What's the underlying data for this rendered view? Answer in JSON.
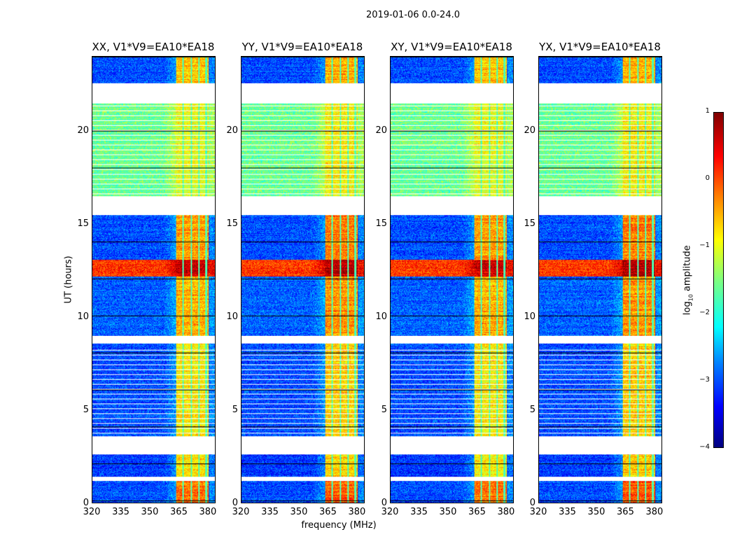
{
  "suptitle": "2019-01-06 0.0-24.0",
  "chart_data": {
    "type": "heatmap",
    "xlabel": "frequency (MHz)",
    "ylabel": "UT (hours)",
    "xlim": [
      320,
      384
    ],
    "ylim": [
      0,
      24
    ],
    "xticks": [
      "320",
      "335",
      "350",
      "365",
      "380"
    ],
    "xtick_values": [
      320,
      335,
      350,
      365,
      380
    ],
    "yticks": [
      "0",
      "5",
      "10",
      "15",
      "20"
    ],
    "ytick_values": [
      0,
      5,
      10,
      15,
      20
    ],
    "panels": [
      {
        "title": "XX, V1*V9=EA10*EA18"
      },
      {
        "title": "YY, V1*V9=EA10*EA18"
      },
      {
        "title": "XY, V1*V9=EA10*EA18"
      },
      {
        "title": "YX, V1*V9=EA10*EA18"
      }
    ],
    "rfi_band_mhz": [
      363.5,
      380.5
    ],
    "band_gaps_mhz": [
      367.3,
      371.5,
      375.5,
      379.3
    ],
    "time_segments": [
      {
        "start": 0.0,
        "end": 1.2,
        "background": -3.0,
        "band": -0.2
      },
      {
        "start": 1.2,
        "end": 1.4,
        "flagged": true
      },
      {
        "start": 1.4,
        "end": 2.6,
        "background": -3.1,
        "band": -0.8
      },
      {
        "start": 2.6,
        "end": 3.6,
        "flagged": true
      },
      {
        "start": 3.6,
        "end": 8.3,
        "background": -3.0,
        "band": -0.8,
        "striped": true
      },
      {
        "start": 8.3,
        "end": 8.6,
        "background": -3.0,
        "band": -0.8
      },
      {
        "start": 8.6,
        "end": 9.0,
        "flagged": true
      },
      {
        "start": 9.0,
        "end": 12.2,
        "background": -2.9,
        "band": -0.5
      },
      {
        "start": 12.2,
        "end": 13.1,
        "background": 0.1,
        "band": 0.6
      },
      {
        "start": 13.1,
        "end": 15.5,
        "background": -3.0,
        "band": -0.4
      },
      {
        "start": 15.5,
        "end": 16.5,
        "flagged": true
      },
      {
        "start": 16.5,
        "end": 21.5,
        "background": -1.6,
        "band": -1.0,
        "striped": true
      },
      {
        "start": 21.5,
        "end": 22.6,
        "flagged": true
      },
      {
        "start": 22.6,
        "end": 24.0,
        "background": -3.0,
        "band": -0.6
      }
    ],
    "colorbar": {
      "label": "log",
      "label_sub": "10",
      "label_rest": " amplitude",
      "range": [
        -4,
        1
      ],
      "ticks": [
        "1",
        "0",
        "−1",
        "−2",
        "−3",
        "−4"
      ],
      "tick_values": [
        1,
        0,
        -1,
        -2,
        -3,
        -4
      ],
      "colormap": "jet"
    }
  }
}
